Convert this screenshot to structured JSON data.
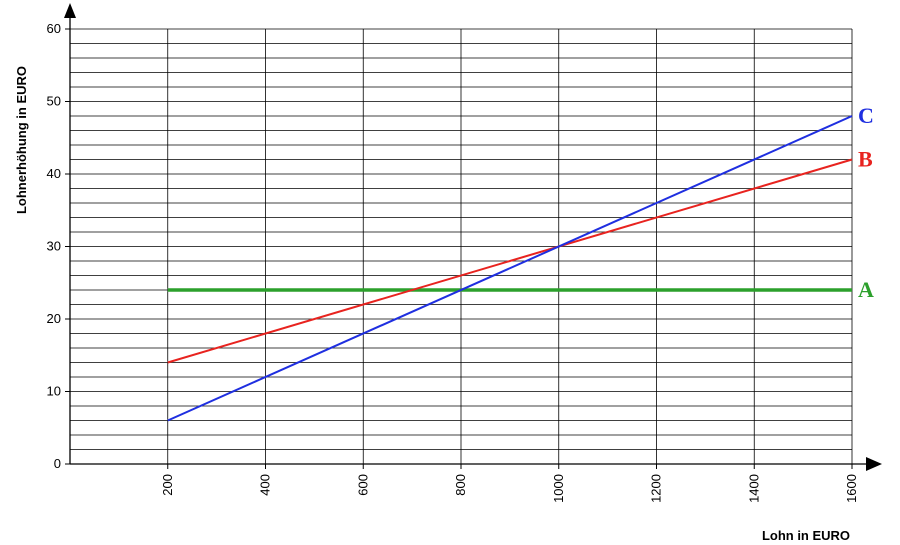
{
  "chart_data": {
    "type": "line",
    "title": "",
    "xlabel": "Lohn in EURO",
    "ylabel": "Lohnerhöhung in EURO",
    "xlim": [
      0,
      1600
    ],
    "ylim": [
      0,
      60
    ],
    "xticks": [
      200,
      400,
      600,
      800,
      1000,
      1200,
      1400,
      1600
    ],
    "yticks": [
      0,
      10,
      20,
      30,
      40,
      50,
      60
    ],
    "y_minor_step": 2,
    "grid": true,
    "legend": "none",
    "series": [
      {
        "name": "A",
        "color": "#2ca02c",
        "x": [
          200,
          1600
        ],
        "y": [
          24,
          24
        ]
      },
      {
        "name": "B",
        "color": "#e8231f",
        "x": [
          200,
          1600
        ],
        "y": [
          14,
          42
        ]
      },
      {
        "name": "C",
        "color": "#1f2fe0",
        "x": [
          200,
          1600
        ],
        "y": [
          6,
          48
        ]
      }
    ]
  }
}
